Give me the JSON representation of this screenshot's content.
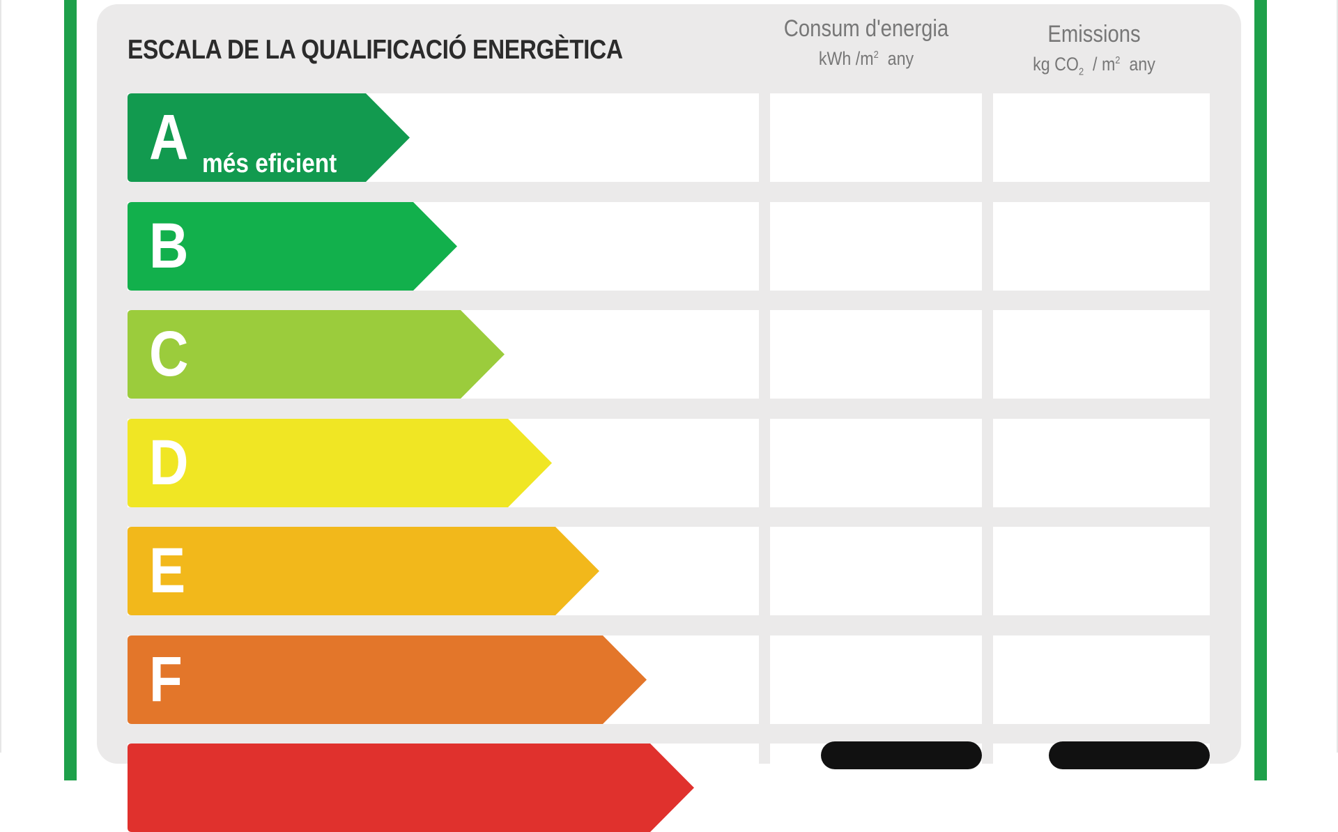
{
  "title": "ESCALA DE LA QUALIFICACIÓ ENERGÈTICA",
  "columns": {
    "consum": {
      "label": "Consum d'energia",
      "unit_prefix": "kWh /m",
      "unit_sup": "2",
      "unit_suffix": "any"
    },
    "emissions": {
      "label": "Emissions",
      "unit_prefix": "kg CO",
      "unit_sub": "2",
      "unit_mid": "/ m",
      "unit_sup": "2",
      "unit_suffix": "any"
    }
  },
  "ratings": [
    {
      "letter": "A",
      "label": "més eficient",
      "color": "#129a4f"
    },
    {
      "letter": "B",
      "label": "",
      "color": "#12b04c"
    },
    {
      "letter": "C",
      "label": "",
      "color": "#9bcc3c"
    },
    {
      "letter": "D",
      "label": "",
      "color": "#f0e624"
    },
    {
      "letter": "E",
      "label": "",
      "color": "#f2b81b"
    },
    {
      "letter": "F",
      "label": "",
      "color": "#e3762a"
    },
    {
      "letter": "",
      "label": "",
      "color": "#e0312d"
    }
  ],
  "colors": {
    "frame": "#1ea04a",
    "panel": "#ebeaea",
    "cell": "#ffffff"
  }
}
